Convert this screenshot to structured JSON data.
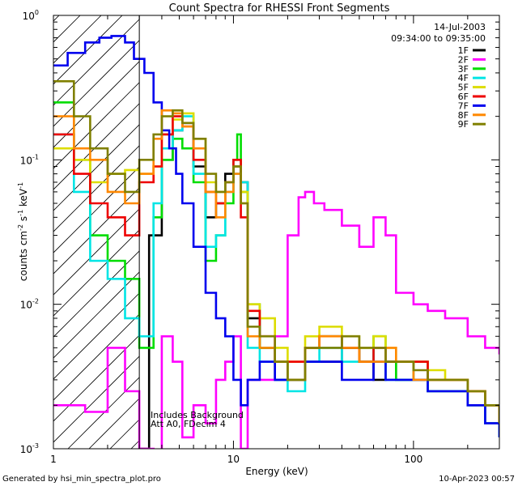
{
  "chart_data": {
    "type": "line",
    "title": "Count Spectra for RHESSI Front Segments",
    "xlabel": "Energy (keV)",
    "ylabel": "counts cm",
    "ylabel_sup1": "-2",
    "ylabel_mid": " s",
    "ylabel_sup2": "-1",
    "ylabel_end": " keV",
    "ylabel_sup3": "-1",
    "x_scale": "log",
    "y_scale": "log",
    "xlim": [
      1,
      300
    ],
    "ylim": [
      0.001,
      1
    ],
    "x_ticks": [
      {
        "value": 1,
        "label": "1"
      },
      {
        "value": 10,
        "label": "10"
      },
      {
        "value": 100,
        "label": "100"
      }
    ],
    "y_tick_mantissa": "10",
    "y_ticks": [
      {
        "value": 1,
        "exp": "0"
      },
      {
        "value": 0.1,
        "exp": "-1"
      },
      {
        "value": 0.01,
        "exp": "-2"
      },
      {
        "value": 0.001,
        "exp": "-3"
      }
    ],
    "date": "14-Jul-2003",
    "time_range": "09:34:00 to 09:35:00",
    "annotations": [
      "Includes Background",
      "Att A0, FDecim 4"
    ],
    "footer_left": "Generated by hsi_min_spectra_plot.pro",
    "footer_right": "10-Apr-2023 00:57",
    "hatched_below_keV": 3,
    "legend_position": "top-right",
    "series": [
      {
        "name": "1F",
        "color": "#000000",
        "x": [
          3,
          3.4,
          4,
          4.6,
          5.2,
          6,
          7,
          8,
          9,
          10,
          11,
          12,
          14,
          17,
          20,
          25,
          30,
          40,
          50,
          60,
          70,
          80,
          100,
          120,
          150,
          200,
          250,
          300
        ],
        "y": [
          0.001,
          0.03,
          0.1,
          0.16,
          0.18,
          0.09,
          0.04,
          0.05,
          0.08,
          0.09,
          0.07,
          0.008,
          0.005,
          0.003,
          0.003,
          0.004,
          0.004,
          0.005,
          0.004,
          0.003,
          0.004,
          0.003,
          0.003,
          0.0025,
          0.0025,
          0.002,
          0.0015,
          0.0012
        ]
      },
      {
        "name": "2F",
        "color": "#ff00ff",
        "x": [
          1,
          1.5,
          2,
          2.5,
          3,
          3.6,
          4,
          4.6,
          5.2,
          6,
          7,
          8,
          9,
          10,
          11,
          12,
          14,
          17,
          20,
          23,
          25,
          28,
          32,
          40,
          50,
          60,
          70,
          80,
          100,
          120,
          150,
          200,
          250,
          300
        ],
        "y": [
          0.002,
          0.0018,
          0.005,
          0.0025,
          0.001,
          0.0008,
          0.006,
          0.004,
          0.0012,
          0.002,
          0.0015,
          0.003,
          0.004,
          0.006,
          0.001,
          0.003,
          0.003,
          0.006,
          0.03,
          0.055,
          0.06,
          0.05,
          0.045,
          0.035,
          0.025,
          0.04,
          0.03,
          0.012,
          0.01,
          0.009,
          0.008,
          0.006,
          0.005,
          0.0045
        ]
      },
      {
        "name": "3F",
        "color": "#00dd00",
        "x": [
          1,
          1.3,
          1.6,
          2,
          2.5,
          3,
          3.6,
          4,
          4.6,
          5.2,
          6,
          7,
          8,
          9,
          10,
          10.5,
          11,
          12,
          14,
          17,
          20,
          25,
          30,
          40,
          50,
          60,
          70,
          80,
          100,
          120,
          150,
          200,
          250,
          300
        ],
        "y": [
          0.25,
          0.1,
          0.03,
          0.02,
          0.015,
          0.005,
          0.04,
          0.1,
          0.14,
          0.12,
          0.07,
          0.02,
          0.03,
          0.05,
          0.1,
          0.15,
          0.06,
          0.01,
          0.005,
          0.004,
          0.003,
          0.005,
          0.006,
          0.005,
          0.004,
          0.006,
          0.004,
          0.003,
          0.004,
          0.003,
          0.003,
          0.0025,
          0.002,
          0.0015
        ]
      },
      {
        "name": "4F",
        "color": "#00e5e5",
        "x": [
          1,
          1.3,
          1.6,
          2,
          2.5,
          3,
          3.6,
          4,
          4.6,
          5.2,
          6,
          7,
          8,
          9,
          10,
          11,
          12,
          14,
          17,
          20,
          25,
          30,
          40,
          50,
          60,
          70,
          80,
          100,
          120,
          150,
          200,
          250,
          300
        ],
        "y": [
          0.15,
          0.06,
          0.02,
          0.015,
          0.008,
          0.006,
          0.05,
          0.12,
          0.16,
          0.2,
          0.08,
          0.025,
          0.03,
          0.06,
          0.08,
          0.07,
          0.005,
          0.004,
          0.003,
          0.0025,
          0.004,
          0.005,
          0.004,
          0.004,
          0.005,
          0.003,
          0.003,
          0.003,
          0.0025,
          0.0025,
          0.002,
          0.0015,
          0.0012
        ]
      },
      {
        "name": "5F",
        "color": "#dddd00",
        "x": [
          1,
          1.3,
          1.6,
          2,
          2.5,
          3,
          3.6,
          4,
          4.6,
          5.2,
          6,
          7,
          8,
          9,
          10,
          11,
          12,
          14,
          17,
          20,
          25,
          30,
          40,
          50,
          60,
          70,
          80,
          100,
          120,
          150,
          200,
          250,
          300
        ],
        "y": [
          0.12,
          0.1,
          0.07,
          0.08,
          0.085,
          0.08,
          0.09,
          0.15,
          0.19,
          0.21,
          0.14,
          0.07,
          0.06,
          0.07,
          0.09,
          0.06,
          0.01,
          0.008,
          0.005,
          0.004,
          0.006,
          0.007,
          0.006,
          0.005,
          0.006,
          0.005,
          0.004,
          0.004,
          0.0035,
          0.003,
          0.0025,
          0.002,
          0.0015
        ]
      },
      {
        "name": "6F",
        "color": "#ee0000",
        "x": [
          1,
          1.3,
          1.6,
          2,
          2.5,
          3,
          3.6,
          4,
          4.6,
          5.2,
          6,
          7,
          8,
          9,
          10,
          11,
          12,
          14,
          17,
          20,
          25,
          30,
          40,
          50,
          60,
          70,
          80,
          100,
          120,
          150,
          200,
          250,
          300
        ],
        "y": [
          0.15,
          0.08,
          0.05,
          0.04,
          0.03,
          0.07,
          0.09,
          0.15,
          0.2,
          0.17,
          0.1,
          0.06,
          0.05,
          0.07,
          0.1,
          0.04,
          0.009,
          0.006,
          0.004,
          0.004,
          0.005,
          0.006,
          0.005,
          0.004,
          0.005,
          0.004,
          0.004,
          0.004,
          0.003,
          0.003,
          0.0025,
          0.002,
          0.0015
        ]
      },
      {
        "name": "7F",
        "color": "#0000ee",
        "x": [
          1,
          1.2,
          1.5,
          1.8,
          2.1,
          2.5,
          2.8,
          3.2,
          3.6,
          4,
          4.4,
          4.8,
          5.2,
          6,
          7,
          8,
          9,
          10,
          11,
          12,
          14,
          17,
          20,
          25,
          30,
          40,
          50,
          60,
          70,
          80,
          100,
          120,
          150,
          200,
          250,
          300
        ],
        "y": [
          0.45,
          0.55,
          0.65,
          0.7,
          0.72,
          0.65,
          0.5,
          0.4,
          0.25,
          0.16,
          0.12,
          0.08,
          0.05,
          0.025,
          0.012,
          0.008,
          0.006,
          0.003,
          0.002,
          0.003,
          0.004,
          0.003,
          0.003,
          0.004,
          0.004,
          0.003,
          0.003,
          0.004,
          0.003,
          0.003,
          0.003,
          0.0025,
          0.0025,
          0.002,
          0.0015,
          0.0012
        ]
      },
      {
        "name": "8F",
        "color": "#ff8800",
        "x": [
          1,
          1.3,
          1.6,
          2,
          2.5,
          3,
          3.6,
          4,
          4.6,
          5.2,
          6,
          7,
          8,
          9,
          10,
          11,
          12,
          14,
          17,
          20,
          25,
          30,
          40,
          50,
          60,
          70,
          80,
          100,
          120,
          150,
          200,
          250,
          300
        ],
        "y": [
          0.2,
          0.12,
          0.1,
          0.06,
          0.05,
          0.08,
          0.14,
          0.22,
          0.21,
          0.17,
          0.12,
          0.06,
          0.04,
          0.06,
          0.08,
          0.05,
          0.006,
          0.005,
          0.004,
          0.003,
          0.005,
          0.006,
          0.005,
          0.004,
          0.004,
          0.005,
          0.004,
          0.003,
          0.003,
          0.003,
          0.0025,
          0.002,
          0.0015
        ]
      },
      {
        "name": "9F",
        "color": "#808000",
        "x": [
          1,
          1.3,
          1.6,
          2,
          2.5,
          3,
          3.6,
          4,
          4.6,
          5.2,
          6,
          7,
          8,
          9,
          10,
          11,
          12,
          14,
          17,
          20,
          25,
          30,
          40,
          50,
          60,
          70,
          80,
          100,
          120,
          150,
          200,
          250,
          300
        ],
        "y": [
          0.35,
          0.2,
          0.12,
          0.08,
          0.06,
          0.1,
          0.15,
          0.2,
          0.22,
          0.18,
          0.14,
          0.08,
          0.06,
          0.07,
          0.09,
          0.05,
          0.007,
          0.006,
          0.004,
          0.003,
          0.005,
          0.005,
          0.006,
          0.005,
          0.005,
          0.004,
          0.004,
          0.0035,
          0.003,
          0.003,
          0.0025,
          0.002,
          0.0015
        ]
      }
    ]
  }
}
